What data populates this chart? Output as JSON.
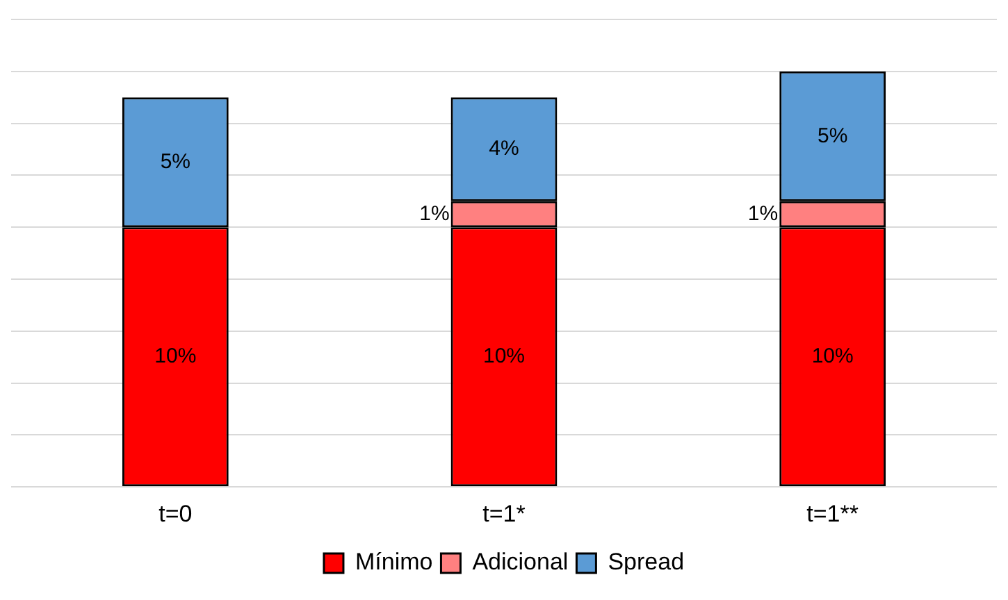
{
  "chart_data": {
    "type": "bar",
    "stacked": true,
    "categories": [
      "t=0",
      "t=1*",
      "t=1**"
    ],
    "series": [
      {
        "name": "Mínimo",
        "color": "#ff0000",
        "values": [
          10,
          10,
          10
        ],
        "value_labels": [
          "10%",
          "10%",
          "10%"
        ]
      },
      {
        "name": "Adicional",
        "color": "#ff8080",
        "values": [
          0,
          1,
          1
        ],
        "value_labels": [
          null,
          "1%",
          "1%"
        ]
      },
      {
        "name": "Spread",
        "color": "#5b9bd5",
        "values": [
          5,
          4,
          5
        ],
        "value_labels": [
          "5%",
          "4%",
          "5%"
        ]
      }
    ],
    "ylim": [
      0,
      18
    ],
    "tick_labels": "x",
    "grid": "y",
    "legend": "bottom"
  }
}
